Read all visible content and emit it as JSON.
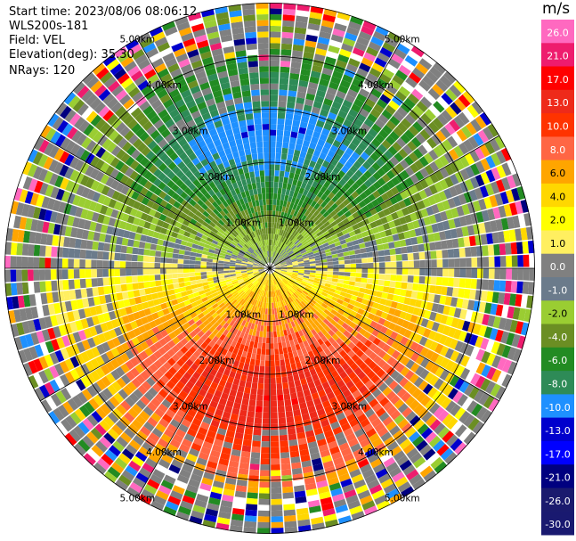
{
  "info": {
    "start_time": "Start time: 2023/08/06 08:06:12",
    "instrument": "WLS200s-181",
    "field": "Field: VEL",
    "elevation": "Elevation(deg): 35.30",
    "nrays": "NRays: 120"
  },
  "chart_data": {
    "type": "heatmap",
    "projection": "polar PPI",
    "field": "VEL",
    "unit": "m/s",
    "nrays": 120,
    "elevation_deg": 35.3,
    "range_rings_km": [
      1.0,
      2.0,
      3.0,
      4.0,
      5.0
    ],
    "ring_labels": [
      "1.00km",
      "2.00km",
      "3.00km",
      "4.00km",
      "5.00km"
    ],
    "colorbar": {
      "unit": "m/s",
      "levels": [
        "26.0",
        "21.0",
        "17.0",
        "13.0",
        "10.0",
        "8.0",
        "6.0",
        "4.0",
        "2.0",
        "1.0",
        "0.0",
        "-1.0",
        "-2.0",
        "-4.0",
        "-6.0",
        "-8.0",
        "-10.0",
        "-13.0",
        "-17.0",
        "-21.0",
        "-26.0",
        "-30.0"
      ],
      "colors": [
        "#ff69c0",
        "#ee1c6e",
        "#ff0000",
        "#ee2a1a",
        "#ff3300",
        "#ff6644",
        "#ffa500",
        "#ffd700",
        "#ffff00",
        "#ffef60",
        "#808080",
        "#6b7b8b",
        "#9acd32",
        "#6b8e23",
        "#228b22",
        "#2e8b57",
        "#1e90ff",
        "#0000cd",
        "#0000ff",
        "#000080",
        "#1a1a6e",
        "#191970"
      ]
    },
    "pattern": {
      "approaching_direction_deg": 0,
      "receding_direction_deg": 180,
      "noise_beyond_km": 4.2
    }
  }
}
